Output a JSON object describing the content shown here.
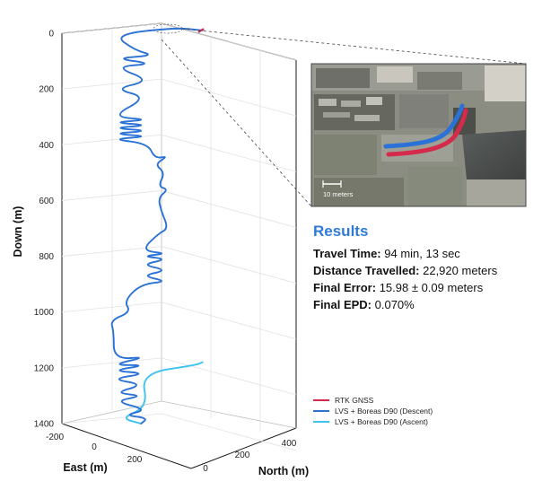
{
  "results": {
    "title": "Results",
    "rows": [
      {
        "label": "Travel Time:",
        "value": " 94 min, 13 sec"
      },
      {
        "label": "Distance Travelled:",
        "value": " 22,920 meters"
      },
      {
        "label": "Final Error:",
        "value": " 15.98 ± 0.09 meters"
      },
      {
        "label": "Final EPD:",
        "value": " 0.070%"
      }
    ]
  },
  "inset": {
    "scale_label": "10 meters"
  },
  "chart_data": {
    "type": "line",
    "projection": "3d",
    "axes": {
      "down": {
        "label": "Down (m)",
        "range": [
          0,
          1400
        ],
        "ticks": [
          0,
          200,
          400,
          600,
          800,
          1000,
          1200,
          1400
        ]
      },
      "east": {
        "label": "East (m)",
        "range": [
          -200,
          200
        ],
        "ticks": [
          -200,
          0,
          200
        ]
      },
      "north": {
        "label": "North (m)",
        "range": [
          0,
          400
        ],
        "ticks": [
          0,
          200,
          400
        ]
      }
    },
    "grid": true,
    "legend_position": "bottom-right",
    "colors": {
      "rtk": "#d42a4c",
      "descent": "#2b72d6",
      "ascent": "#3ec3ee"
    },
    "series": [
      {
        "name": "RTK GNSS",
        "color": "#d42a4c",
        "points": [
          [
            110,
            0,
            -5
          ],
          [
            115,
            0,
            -10
          ],
          [
            122,
            0,
            -14
          ]
        ]
      },
      {
        "name": "LVS + Boreas D90 (Descent)",
        "color": "#2b72d6",
        "points": [
          [
            120,
            0,
            -10
          ],
          [
            40,
            0,
            -20
          ],
          [
            -140,
            0,
            5
          ],
          [
            -80,
            0,
            60
          ],
          [
            -20,
            0,
            80
          ],
          [
            -140,
            0,
            90
          ],
          [
            -20,
            0,
            110
          ],
          [
            -140,
            0,
            120
          ],
          [
            -30,
            0,
            170
          ],
          [
            -140,
            0,
            200
          ],
          [
            -40,
            0,
            230
          ],
          [
            -150,
            0,
            300
          ],
          [
            -30,
            0,
            310
          ],
          [
            -150,
            0,
            320
          ],
          [
            -30,
            0,
            330
          ],
          [
            -150,
            0,
            340
          ],
          [
            -30,
            0,
            350
          ],
          [
            -150,
            0,
            360
          ],
          [
            -30,
            0,
            370
          ],
          [
            -150,
            0,
            380
          ],
          [
            -40,
            0,
            395
          ],
          [
            -20,
            0,
            450
          ],
          [
            20,
            0,
            440
          ],
          [
            -20,
            0,
            470
          ],
          [
            10,
            0,
            500
          ],
          [
            -10,
            0,
            550
          ],
          [
            20,
            0,
            560
          ],
          [
            -10,
            0,
            590
          ],
          [
            0,
            0,
            640
          ],
          [
            20,
            0,
            700
          ],
          [
            -10,
            0,
            720
          ],
          [
            -60,
            0,
            780
          ],
          [
            20,
            0,
            790
          ],
          [
            -60,
            0,
            800
          ],
          [
            20,
            0,
            810
          ],
          [
            -60,
            0,
            830
          ],
          [
            20,
            0,
            850
          ],
          [
            -60,
            0,
            870
          ],
          [
            20,
            0,
            890
          ],
          [
            -60,
            0,
            900
          ],
          [
            -110,
            0,
            960
          ],
          [
            -90,
            0,
            1000
          ],
          [
            -150,
            0,
            1030
          ],
          [
            -140,
            0,
            1070
          ],
          [
            -140,
            0,
            1170
          ],
          [
            -40,
            0,
            1160
          ],
          [
            -150,
            0,
            1190
          ],
          [
            -40,
            0,
            1190
          ],
          [
            -150,
            0,
            1210
          ],
          [
            -40,
            0,
            1220
          ],
          [
            -150,
            0,
            1240
          ],
          [
            -50,
            0,
            1260
          ],
          [
            -140,
            0,
            1290
          ],
          [
            -50,
            0,
            1300
          ],
          [
            -140,
            0,
            1320
          ],
          [
            -40,
            0,
            1350
          ],
          [
            -110,
            0,
            1370
          ],
          [
            -40,
            0,
            1380
          ],
          [
            -60,
            0,
            1400
          ]
        ]
      },
      {
        "name": "LVS + Boreas D90 (Ascent)",
        "color": "#3ec3ee",
        "points": [
          [
            -60,
            0,
            1400
          ],
          [
            -120,
            0,
            1380
          ],
          [
            -40,
            0,
            1340
          ],
          [
            -60,
            0,
            1220
          ],
          [
            100,
            0,
            1190
          ],
          [
            120,
            0,
            1180
          ]
        ]
      }
    ]
  }
}
